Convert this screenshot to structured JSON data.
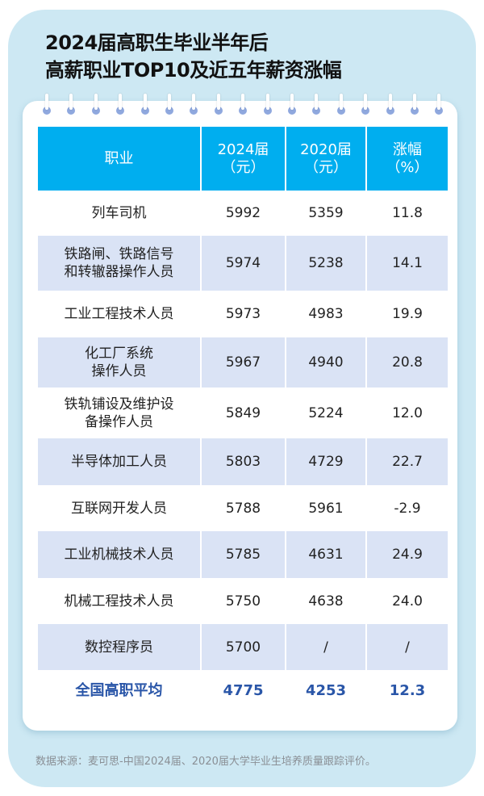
{
  "title": {
    "line1": "2024届高职生毕业半年后",
    "line2": "高薪职业TOP10及近五年薪资涨幅"
  },
  "table": {
    "headers": [
      {
        "line1": "职业",
        "line2": ""
      },
      {
        "line1": "2024届",
        "line2": "（元）"
      },
      {
        "line1": "2020届",
        "line2": "（元）"
      },
      {
        "line1": "涨幅",
        "line2": "（%）"
      }
    ],
    "rows": [
      {
        "job1": "列车司机",
        "job2": "",
        "y2024": "5992",
        "y2020": "5359",
        "growth": "11.8"
      },
      {
        "job1": "铁路闸、铁路信号",
        "job2": "和转辙器操作人员",
        "y2024": "5974",
        "y2020": "5238",
        "growth": "14.1"
      },
      {
        "job1": "工业工程技术人员",
        "job2": "",
        "y2024": "5973",
        "y2020": "4983",
        "growth": "19.9"
      },
      {
        "job1": "化工厂系统",
        "job2": "操作人员",
        "y2024": "5967",
        "y2020": "4940",
        "growth": "20.8"
      },
      {
        "job1": "铁轨铺设及维护设",
        "job2": "备操作人员",
        "y2024": "5849",
        "y2020": "5224",
        "growth": "12.0"
      },
      {
        "job1": "半导体加工人员",
        "job2": "",
        "y2024": "5803",
        "y2020": "4729",
        "growth": "22.7"
      },
      {
        "job1": "互联网开发人员",
        "job2": "",
        "y2024": "5788",
        "y2020": "5961",
        "growth": "-2.9"
      },
      {
        "job1": "工业机械技术人员",
        "job2": "",
        "y2024": "5785",
        "y2020": "4631",
        "growth": "24.9"
      },
      {
        "job1": "机械工程技术人员",
        "job2": "",
        "y2024": "5750",
        "y2020": "4638",
        "growth": "24.0"
      },
      {
        "job1": "数控程序员",
        "job2": "",
        "y2024": "5700",
        "y2020": "/",
        "growth": "/"
      }
    ],
    "average": {
      "label": "全国高职平均",
      "y2024": "4775",
      "y2020": "4253",
      "growth": "12.3"
    }
  },
  "source": "数据来源：麦可思-中国2024届、2020届大学毕业生培养质量跟踪评价。",
  "colors": {
    "header": "#00aeef",
    "stripe": "#dae3f5",
    "average_text": "#2a56a8",
    "panel": "#cde8f3",
    "ring": "#8fa8de"
  }
}
